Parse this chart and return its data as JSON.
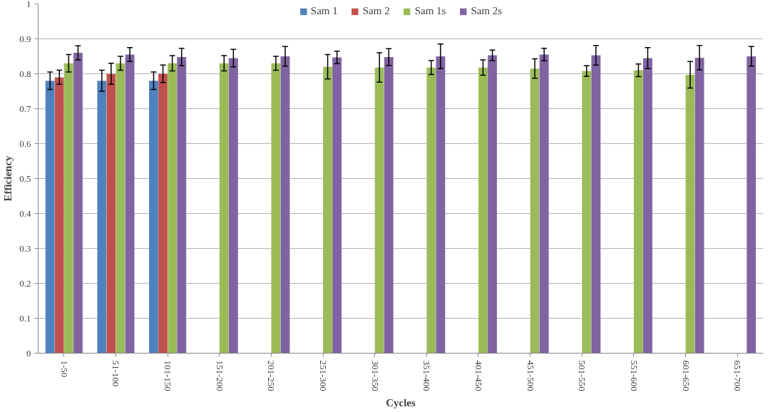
{
  "chart_data": {
    "type": "bar",
    "xlabel": "Cycles",
    "ylabel": "Efficiency",
    "categories": [
      "1-50",
      "51-100",
      "101-150",
      "151-200",
      "201-250",
      "251-300",
      "301-350",
      "351-400",
      "401-450",
      "451-500",
      "501-550",
      "551-600",
      "601-650",
      "651-700"
    ],
    "series": [
      {
        "name": "Sam 1",
        "color": "#4f81bd",
        "values": [
          0.78,
          0.78,
          0.78,
          null,
          null,
          null,
          null,
          null,
          null,
          null,
          null,
          null,
          null,
          null
        ],
        "errors": [
          0.025,
          0.03,
          0.025,
          null,
          null,
          null,
          null,
          null,
          null,
          null,
          null,
          null,
          null,
          null
        ]
      },
      {
        "name": "Sam 2",
        "color": "#c0504d",
        "values": [
          0.79,
          0.8,
          0.8,
          null,
          null,
          null,
          null,
          null,
          null,
          null,
          null,
          null,
          null,
          null
        ],
        "errors": [
          0.02,
          0.03,
          0.025,
          null,
          null,
          null,
          null,
          null,
          null,
          null,
          null,
          null,
          null,
          null
        ]
      },
      {
        "name": "Sam 1s",
        "color": "#9bbb59",
        "values": [
          0.83,
          0.83,
          0.83,
          0.83,
          0.83,
          0.82,
          0.818,
          0.818,
          0.818,
          0.815,
          0.808,
          0.81,
          0.797,
          null
        ],
        "errors": [
          0.025,
          0.02,
          0.022,
          0.022,
          0.02,
          0.035,
          0.042,
          0.02,
          0.022,
          0.028,
          0.015,
          0.018,
          0.038,
          null
        ]
      },
      {
        "name": "Sam 2s",
        "color": "#8064a2",
        "values": [
          0.86,
          0.855,
          0.848,
          0.845,
          0.85,
          0.847,
          0.848,
          0.85,
          0.853,
          0.855,
          0.853,
          0.845,
          0.846,
          0.85
        ],
        "errors": [
          0.02,
          0.02,
          0.025,
          0.025,
          0.028,
          0.018,
          0.024,
          0.035,
          0.015,
          0.018,
          0.028,
          0.03,
          0.035,
          0.028
        ]
      }
    ],
    "ylim": [
      0,
      1
    ],
    "yticks": [
      0,
      0.1,
      0.2,
      0.3,
      0.4,
      0.5,
      0.6,
      0.7,
      0.8,
      0.9,
      1
    ],
    "grid": "y",
    "legend": "top"
  }
}
